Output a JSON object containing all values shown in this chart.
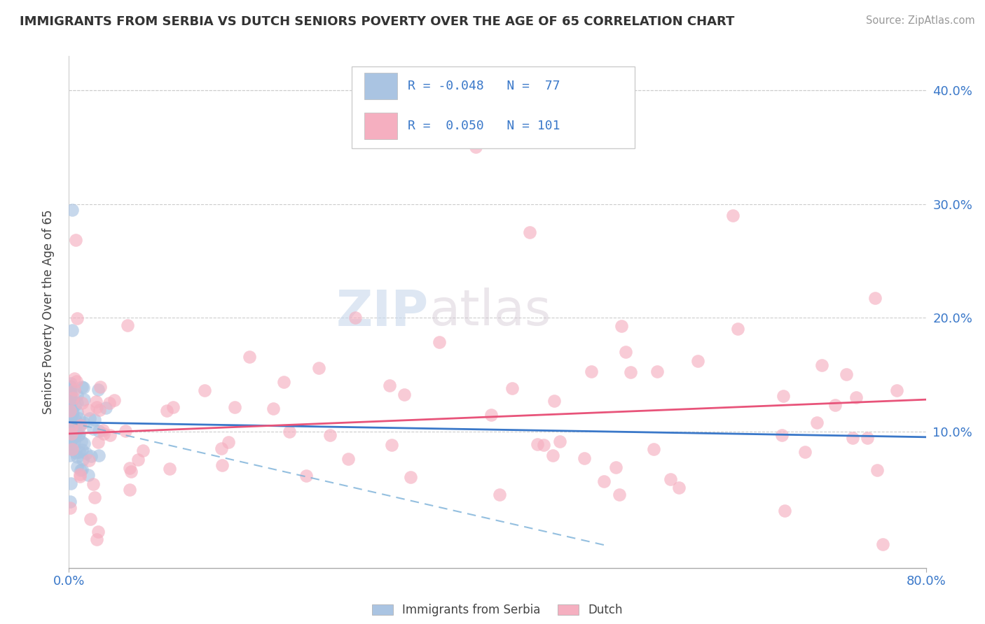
{
  "title": "IMMIGRANTS FROM SERBIA VS DUTCH SENIORS POVERTY OVER THE AGE OF 65 CORRELATION CHART",
  "source": "Source: ZipAtlas.com",
  "ylabel": "Seniors Poverty Over the Age of 65",
  "xlim": [
    0.0,
    0.8
  ],
  "ylim": [
    -0.02,
    0.43
  ],
  "ytick_vals": [
    0.0,
    0.1,
    0.2,
    0.3,
    0.4
  ],
  "ytick_labels_right": [
    "",
    "10.0%",
    "20.0%",
    "30.0%",
    "40.0%"
  ],
  "serbia_color": "#aac4e2",
  "dutch_color": "#f5afc0",
  "serbia_line_color": "#3a78c9",
  "dutch_line_color": "#e8547a",
  "dashed_line_color": "#7ab0d8",
  "watermark_zip": "ZIP",
  "watermark_atlas": "atlas",
  "legend_text_color": "#3a78c9",
  "serbia_r": "R = -0.048",
  "serbia_n": "N =  77",
  "dutch_r": "R =  0.050",
  "dutch_n": "N = 101",
  "serbia_line_x": [
    0.0,
    0.8
  ],
  "serbia_line_y": [
    0.108,
    0.095
  ],
  "dutch_line_x": [
    0.0,
    0.8
  ],
  "dutch_line_y": [
    0.098,
    0.128
  ],
  "dashed_line_x": [
    0.0,
    0.5
  ],
  "dashed_line_y": [
    0.108,
    0.0
  ]
}
